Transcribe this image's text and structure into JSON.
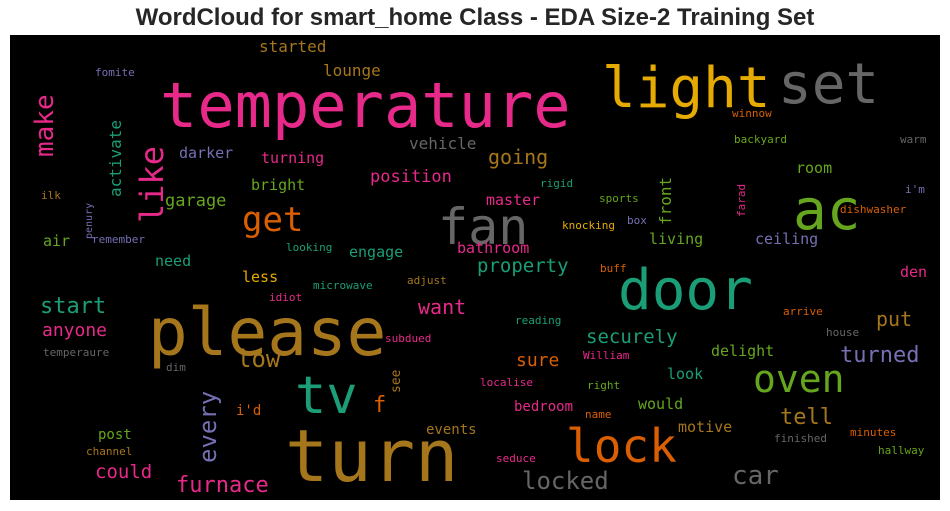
{
  "title": "WordCloud for smart_home Class - EDA Size-2 Training Set",
  "chart_data": {
    "type": "wordcloud",
    "background": "#000000",
    "palette": "Dark2",
    "words": [
      {
        "text": "temperature",
        "color": "#e7298a"
      },
      {
        "text": "light",
        "color": "#e6ab02"
      },
      {
        "text": "set",
        "color": "#666666"
      },
      {
        "text": "please",
        "color": "#a6761d"
      },
      {
        "text": "turn",
        "color": "#a6761d"
      },
      {
        "text": "door",
        "color": "#1b9e77"
      },
      {
        "text": "fan",
        "color": "#666666"
      },
      {
        "text": "ac",
        "color": "#66a61e"
      },
      {
        "text": "tv",
        "color": "#1b9e77"
      },
      {
        "text": "lock",
        "color": "#d95f02"
      },
      {
        "text": "oven",
        "color": "#66a61e"
      },
      {
        "text": "get",
        "color": "#d95f02"
      },
      {
        "text": "like",
        "color": "#e7298a"
      },
      {
        "text": "make",
        "color": "#e7298a"
      },
      {
        "text": "every",
        "color": "#7570b3"
      },
      {
        "text": "low",
        "color": "#a6761d"
      },
      {
        "text": "car",
        "color": "#666666"
      },
      {
        "text": "locked",
        "color": "#666666"
      },
      {
        "text": "furnace",
        "color": "#e7298a"
      },
      {
        "text": "turned",
        "color": "#7570b3"
      },
      {
        "text": "start",
        "color": "#1b9e77"
      },
      {
        "text": "going",
        "color": "#a6761d"
      },
      {
        "text": "tell",
        "color": "#a6761d"
      },
      {
        "text": "f",
        "color": "#d95f02"
      },
      {
        "text": "property",
        "color": "#1b9e77"
      },
      {
        "text": "want",
        "color": "#e7298a"
      },
      {
        "text": "securely",
        "color": "#1b9e77"
      },
      {
        "text": "could",
        "color": "#e7298a"
      },
      {
        "text": "anyone",
        "color": "#e7298a"
      },
      {
        "text": "put",
        "color": "#a6761d"
      },
      {
        "text": "sure",
        "color": "#d95f02"
      },
      {
        "text": "position",
        "color": "#e7298a"
      },
      {
        "text": "garage",
        "color": "#66a61e"
      },
      {
        "text": "activate",
        "color": "#1b9e77"
      },
      {
        "text": "front",
        "color": "#66a61e"
      },
      {
        "text": "started",
        "color": "#a6761d"
      },
      {
        "text": "lounge",
        "color": "#a6761d"
      },
      {
        "text": "vehicle",
        "color": "#666666"
      },
      {
        "text": "darker",
        "color": "#7570b3"
      },
      {
        "text": "turning",
        "color": "#e7298a"
      },
      {
        "text": "bright",
        "color": "#66a61e"
      },
      {
        "text": "master",
        "color": "#e7298a"
      },
      {
        "text": "room",
        "color": "#66a61e"
      },
      {
        "text": "engage",
        "color": "#1b9e77"
      },
      {
        "text": "bathroom",
        "color": "#e7298a"
      },
      {
        "text": "living",
        "color": "#66a61e"
      },
      {
        "text": "ceiling",
        "color": "#7570b3"
      },
      {
        "text": "air",
        "color": "#66a61e"
      },
      {
        "text": "need",
        "color": "#1b9e77"
      },
      {
        "text": "less",
        "color": "#e6ab02"
      },
      {
        "text": "den",
        "color": "#e7298a"
      },
      {
        "text": "delight",
        "color": "#66a61e"
      },
      {
        "text": "look",
        "color": "#1b9e77"
      },
      {
        "text": "would",
        "color": "#66a61e"
      },
      {
        "text": "motive",
        "color": "#a6761d"
      },
      {
        "text": "bedroom",
        "color": "#e7298a"
      },
      {
        "text": "events",
        "color": "#a6761d"
      },
      {
        "text": "i'd",
        "color": "#d95f02"
      },
      {
        "text": "post",
        "color": "#66a61e"
      },
      {
        "text": "see",
        "color": "#a6761d"
      },
      {
        "text": "fomite",
        "color": "#7570b3"
      },
      {
        "text": "winnow",
        "color": "#d95f02"
      },
      {
        "text": "backyard",
        "color": "#66a61e"
      },
      {
        "text": "warm",
        "color": "#666666"
      },
      {
        "text": "i'm",
        "color": "#7570b3"
      },
      {
        "text": "rigid",
        "color": "#1b9e77"
      },
      {
        "text": "sports",
        "color": "#66a61e"
      },
      {
        "text": "farad",
        "color": "#e7298a"
      },
      {
        "text": "box",
        "color": "#7570b3"
      },
      {
        "text": "dishwasher",
        "color": "#d95f02"
      },
      {
        "text": "knocking",
        "color": "#e6ab02"
      },
      {
        "text": "ilk",
        "color": "#a6761d"
      },
      {
        "text": "penury",
        "color": "#7570b3"
      },
      {
        "text": "remember",
        "color": "#7570b3"
      },
      {
        "text": "looking",
        "color": "#1b9e77"
      },
      {
        "text": "microwave",
        "color": "#1b9e77"
      },
      {
        "text": "adjust",
        "color": "#a6761d"
      },
      {
        "text": "buff",
        "color": "#d95f02"
      },
      {
        "text": "idiot",
        "color": "#e7298a"
      },
      {
        "text": "reading",
        "color": "#1b9e77"
      },
      {
        "text": "arrive",
        "color": "#d95f02"
      },
      {
        "text": "subdued",
        "color": "#e7298a"
      },
      {
        "text": "house",
        "color": "#666666"
      },
      {
        "text": "temperaure",
        "color": "#666666"
      },
      {
        "text": "William",
        "color": "#e7298a"
      },
      {
        "text": "dim",
        "color": "#666666"
      },
      {
        "text": "localise",
        "color": "#e7298a"
      },
      {
        "text": "right",
        "color": "#66a61e"
      },
      {
        "text": "name",
        "color": "#d95f02"
      },
      {
        "text": "seduce",
        "color": "#e7298a"
      },
      {
        "text": "finished",
        "color": "#666666"
      },
      {
        "text": "minutes",
        "color": "#d95f02"
      },
      {
        "text": "channel",
        "color": "#a6761d"
      },
      {
        "text": "hallway",
        "color": "#66a61e"
      }
    ]
  }
}
